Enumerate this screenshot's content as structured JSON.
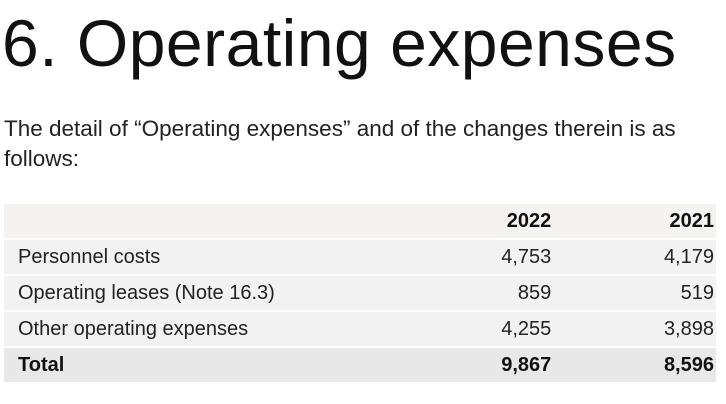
{
  "section": {
    "title": "6. Operating expenses",
    "intro": "The detail of “Operating expenses” and of the changes therein is as follows:"
  },
  "table": {
    "columns": [
      "",
      "2022",
      "2021"
    ],
    "rows": [
      {
        "label": "Personnel costs",
        "y2022": "4,753",
        "y2021": "4,179"
      },
      {
        "label": "Operating leases (Note 16.3)",
        "y2022": "859",
        "y2021": "519"
      },
      {
        "label": "Other operating expenses",
        "y2022": "4,255",
        "y2021": "3,898"
      }
    ],
    "total": {
      "label": "Total",
      "y2022": "9,867",
      "y2021": "8,596"
    }
  }
}
